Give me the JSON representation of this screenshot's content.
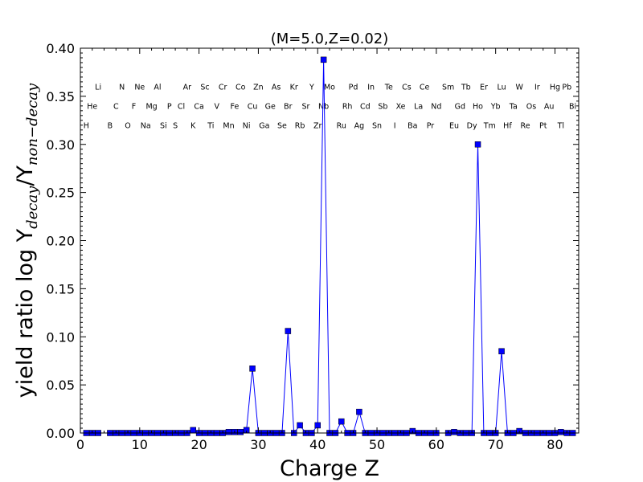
{
  "chart_data": {
    "type": "line",
    "title": "(M=5.0,Z=0.02)",
    "xlabel": "Charge Z",
    "ylabel": {
      "prefix": "yield ratio log Y",
      "sub1": "decay",
      "mid": "/Y",
      "sub2": "non−decay"
    },
    "xlim": [
      0,
      84
    ],
    "ylim": [
      0.0,
      0.4
    ],
    "xticks": [
      0,
      10,
      20,
      30,
      40,
      50,
      60,
      70,
      80
    ],
    "xtick_labels": [
      "0",
      "10",
      "20",
      "30",
      "40",
      "50",
      "60",
      "70",
      "80"
    ],
    "yticks": [
      0.0,
      0.05,
      0.1,
      0.15,
      0.2,
      0.25,
      0.3,
      0.35,
      0.4
    ],
    "ytick_labels": [
      "0.00",
      "0.05",
      "0.10",
      "0.15",
      "0.20",
      "0.25",
      "0.30",
      "0.35",
      "0.40"
    ],
    "grid": false,
    "line_color": "#0000ff",
    "marker": "square",
    "element_labels": [
      {
        "z": 1,
        "symbol": "H",
        "y": 0.32
      },
      {
        "z": 2,
        "symbol": "He",
        "y": 0.34
      },
      {
        "z": 3,
        "symbol": "Li",
        "y": 0.36
      },
      {
        "z": 5,
        "symbol": "B",
        "y": 0.32
      },
      {
        "z": 6,
        "symbol": "C",
        "y": 0.34
      },
      {
        "z": 7,
        "symbol": "N",
        "y": 0.36
      },
      {
        "z": 8,
        "symbol": "O",
        "y": 0.32
      },
      {
        "z": 9,
        "symbol": "F",
        "y": 0.34
      },
      {
        "z": 10,
        "symbol": "Ne",
        "y": 0.36
      },
      {
        "z": 11,
        "symbol": "Na",
        "y": 0.32
      },
      {
        "z": 12,
        "symbol": "Mg",
        "y": 0.34
      },
      {
        "z": 13,
        "symbol": "Al",
        "y": 0.36
      },
      {
        "z": 14,
        "symbol": "Si",
        "y": 0.32
      },
      {
        "z": 15,
        "symbol": "P",
        "y": 0.34
      },
      {
        "z": 16,
        "symbol": "S",
        "y": 0.32
      },
      {
        "z": 17,
        "symbol": "Cl",
        "y": 0.34
      },
      {
        "z": 18,
        "symbol": "Ar",
        "y": 0.36
      },
      {
        "z": 19,
        "symbol": "K",
        "y": 0.32
      },
      {
        "z": 20,
        "symbol": "Ca",
        "y": 0.34
      },
      {
        "z": 21,
        "symbol": "Sc",
        "y": 0.36
      },
      {
        "z": 22,
        "symbol": "Ti",
        "y": 0.32
      },
      {
        "z": 23,
        "symbol": "V",
        "y": 0.34
      },
      {
        "z": 24,
        "symbol": "Cr",
        "y": 0.36
      },
      {
        "z": 25,
        "symbol": "Mn",
        "y": 0.32
      },
      {
        "z": 26,
        "symbol": "Fe",
        "y": 0.34
      },
      {
        "z": 27,
        "symbol": "Co",
        "y": 0.36
      },
      {
        "z": 28,
        "symbol": "Ni",
        "y": 0.32
      },
      {
        "z": 29,
        "symbol": "Cu",
        "y": 0.34
      },
      {
        "z": 30,
        "symbol": "Zn",
        "y": 0.36
      },
      {
        "z": 31,
        "symbol": "Ga",
        "y": 0.32
      },
      {
        "z": 32,
        "symbol": "Ge",
        "y": 0.34
      },
      {
        "z": 33,
        "symbol": "As",
        "y": 0.36
      },
      {
        "z": 34,
        "symbol": "Se",
        "y": 0.32
      },
      {
        "z": 35,
        "symbol": "Br",
        "y": 0.34
      },
      {
        "z": 36,
        "symbol": "Kr",
        "y": 0.36
      },
      {
        "z": 37,
        "symbol": "Rb",
        "y": 0.32
      },
      {
        "z": 38,
        "symbol": "Sr",
        "y": 0.34
      },
      {
        "z": 39,
        "symbol": "Y",
        "y": 0.36
      },
      {
        "z": 40,
        "symbol": "Zr",
        "y": 0.32
      },
      {
        "z": 41,
        "symbol": "Nb",
        "y": 0.34
      },
      {
        "z": 42,
        "symbol": "Mo",
        "y": 0.36
      },
      {
        "z": 44,
        "symbol": "Ru",
        "y": 0.32
      },
      {
        "z": 45,
        "symbol": "Rh",
        "y": 0.34
      },
      {
        "z": 46,
        "symbol": "Pd",
        "y": 0.36
      },
      {
        "z": 47,
        "symbol": "Ag",
        "y": 0.32
      },
      {
        "z": 48,
        "symbol": "Cd",
        "y": 0.34
      },
      {
        "z": 49,
        "symbol": "In",
        "y": 0.36
      },
      {
        "z": 50,
        "symbol": "Sn",
        "y": 0.32
      },
      {
        "z": 51,
        "symbol": "Sb",
        "y": 0.34
      },
      {
        "z": 52,
        "symbol": "Te",
        "y": 0.36
      },
      {
        "z": 53,
        "symbol": "I",
        "y": 0.32
      },
      {
        "z": 54,
        "symbol": "Xe",
        "y": 0.34
      },
      {
        "z": 55,
        "symbol": "Cs",
        "y": 0.36
      },
      {
        "z": 56,
        "symbol": "Ba",
        "y": 0.32
      },
      {
        "z": 57,
        "symbol": "La",
        "y": 0.34
      },
      {
        "z": 58,
        "symbol": "Ce",
        "y": 0.36
      },
      {
        "z": 59,
        "symbol": "Pr",
        "y": 0.32
      },
      {
        "z": 60,
        "symbol": "Nd",
        "y": 0.34
      },
      {
        "z": 62,
        "symbol": "Sm",
        "y": 0.36
      },
      {
        "z": 63,
        "symbol": "Eu",
        "y": 0.32
      },
      {
        "z": 64,
        "symbol": "Gd",
        "y": 0.34
      },
      {
        "z": 65,
        "symbol": "Tb",
        "y": 0.36
      },
      {
        "z": 66,
        "symbol": "Dy",
        "y": 0.32
      },
      {
        "z": 67,
        "symbol": "Ho",
        "y": 0.34
      },
      {
        "z": 68,
        "symbol": "Er",
        "y": 0.36
      },
      {
        "z": 69,
        "symbol": "Tm",
        "y": 0.32
      },
      {
        "z": 70,
        "symbol": "Yb",
        "y": 0.34
      },
      {
        "z": 71,
        "symbol": "Lu",
        "y": 0.36
      },
      {
        "z": 72,
        "symbol": "Hf",
        "y": 0.32
      },
      {
        "z": 73,
        "symbol": "Ta",
        "y": 0.34
      },
      {
        "z": 74,
        "symbol": "W",
        "y": 0.36
      },
      {
        "z": 75,
        "symbol": "Re",
        "y": 0.32
      },
      {
        "z": 76,
        "symbol": "Os",
        "y": 0.34
      },
      {
        "z": 77,
        "symbol": "Ir",
        "y": 0.36
      },
      {
        "z": 78,
        "symbol": "Pt",
        "y": 0.32
      },
      {
        "z": 79,
        "symbol": "Au",
        "y": 0.34
      },
      {
        "z": 80,
        "symbol": "Hg",
        "y": 0.36
      },
      {
        "z": 81,
        "symbol": "Tl",
        "y": 0.32
      },
      {
        "z": 82,
        "symbol": "Pb",
        "y": 0.36
      },
      {
        "z": 83,
        "symbol": "Bi",
        "y": 0.34
      }
    ],
    "series": [
      {
        "segments": [
          {
            "x": [
              1,
              2,
              3
            ],
            "y": [
              0,
              0,
              0
            ]
          },
          {
            "x": [
              5,
              6,
              7,
              8,
              9,
              10,
              11,
              12,
              13,
              14,
              15,
              16,
              17,
              18,
              19,
              20,
              21,
              22,
              23,
              24,
              25,
              26,
              27,
              28,
              29,
              30,
              31,
              32,
              33,
              34,
              35,
              36,
              37,
              38,
              39,
              40,
              41,
              42,
              43,
              44,
              45,
              46,
              47,
              48,
              49,
              50,
              51,
              52,
              53,
              54,
              55,
              56,
              57,
              58,
              59,
              60
            ],
            "y": [
              0,
              0,
              0,
              0,
              0,
              0,
              0,
              0,
              0,
              0,
              0,
              0,
              0,
              0,
              0.003,
              0,
              0,
              0,
              0,
              0,
              0.001,
              0.001,
              0.001,
              0.003,
              0.067,
              0,
              0,
              0,
              0,
              0,
              0.106,
              0,
              0.008,
              0,
              0,
              0.008,
              0.388,
              0,
              0,
              0.012,
              0,
              0,
              0.022,
              0,
              0,
              0,
              0,
              0,
              0,
              0,
              0,
              0.002,
              0,
              0,
              0,
              0
            ]
          },
          {
            "x": [
              62,
              63,
              64,
              65,
              66,
              67,
              68,
              69,
              70,
              71,
              72,
              73,
              74,
              75,
              76,
              77,
              78,
              79,
              80,
              81,
              82,
              83
            ],
            "y": [
              0,
              0.001,
              0,
              0,
              0,
              0.3,
              0,
              0,
              0,
              0.085,
              0,
              0,
              0.002,
              0,
              0,
              0,
              0,
              0,
              0,
              0.001,
              0,
              0
            ]
          }
        ]
      }
    ]
  }
}
